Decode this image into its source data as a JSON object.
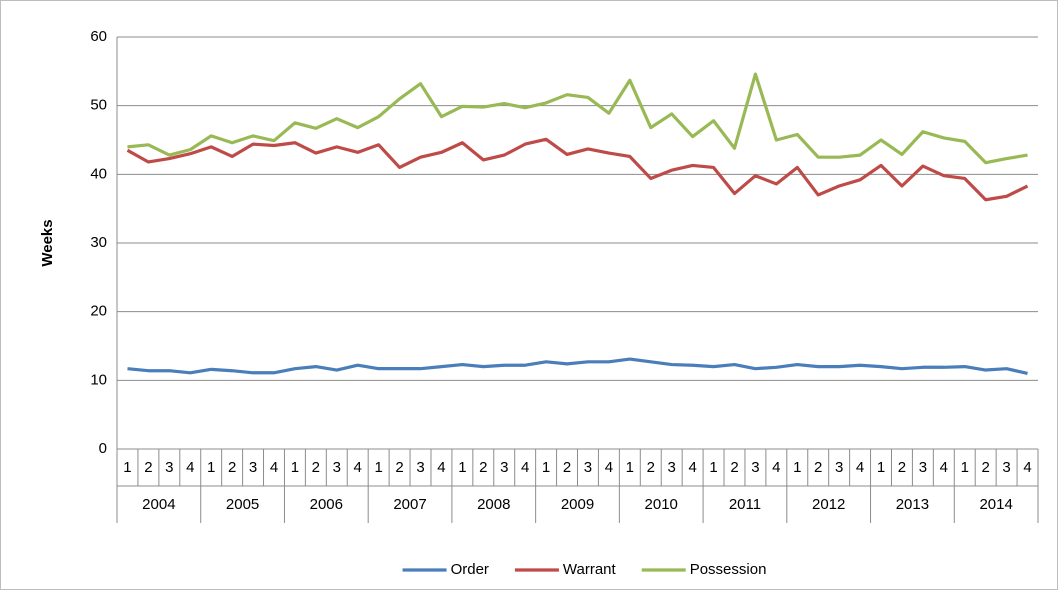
{
  "chart_data": {
    "type": "line",
    "y_label": "Weeks",
    "categories": [
      "1",
      "2",
      "3",
      "4",
      "1",
      "2",
      "3",
      "4",
      "1",
      "2",
      "3",
      "4",
      "1",
      "2",
      "3",
      "4",
      "1",
      "2",
      "3",
      "4",
      "1",
      "2",
      "3",
      "4",
      "1",
      "2",
      "3",
      "4",
      "1",
      "2",
      "3",
      "4",
      "1",
      "2",
      "3",
      "4",
      "1",
      "2",
      "3",
      "4",
      "1",
      "2",
      "3",
      "4"
    ],
    "category_groups": [
      "2004",
      "2005",
      "2006",
      "2007",
      "2008",
      "2009",
      "2010",
      "2011",
      "2012",
      "2013",
      "2014"
    ],
    "series": [
      {
        "name": "Order",
        "color": "#4a7ebb",
        "values": [
          11.7,
          11.4,
          11.4,
          11.1,
          11.6,
          11.4,
          11.1,
          11.1,
          11.7,
          12.0,
          11.5,
          12.2,
          11.7,
          11.7,
          11.7,
          12.0,
          12.3,
          12.0,
          12.2,
          12.2,
          12.7,
          12.4,
          12.7,
          12.7,
          13.1,
          12.7,
          12.3,
          12.2,
          12.0,
          12.3,
          11.7,
          11.9,
          12.3,
          12.0,
          12.0,
          12.2,
          12.0,
          11.7,
          11.9,
          11.9,
          12.0,
          11.5,
          11.7,
          11.0
        ]
      },
      {
        "name": "Warrant",
        "color": "#be4b48",
        "values": [
          43.5,
          41.8,
          42.3,
          43.0,
          44.0,
          42.6,
          44.4,
          44.2,
          44.6,
          43.1,
          44.0,
          43.2,
          44.3,
          41.0,
          42.5,
          43.2,
          44.6,
          42.1,
          42.8,
          44.4,
          45.1,
          42.9,
          43.7,
          43.1,
          42.6,
          39.4,
          40.6,
          41.3,
          41.0,
          37.2,
          39.8,
          38.6,
          41.0,
          37.0,
          38.3,
          39.2,
          41.3,
          38.3,
          41.2,
          39.8,
          39.4,
          36.3,
          36.8,
          38.3
        ]
      },
      {
        "name": "Possession",
        "color": "#98b954",
        "values": [
          44.0,
          44.3,
          42.8,
          43.6,
          45.6,
          44.6,
          45.6,
          44.9,
          47.5,
          46.7,
          48.1,
          46.8,
          48.4,
          51.0,
          53.2,
          48.4,
          49.9,
          49.8,
          50.3,
          49.7,
          50.4,
          51.6,
          51.2,
          48.9,
          53.7,
          46.8,
          48.8,
          45.5,
          47.8,
          43.8,
          54.6,
          45.0,
          45.8,
          42.5,
          42.5,
          42.8,
          45.0,
          42.9,
          46.2,
          45.3,
          44.8,
          41.7,
          42.3,
          42.8
        ]
      }
    ],
    "ylim": [
      0,
      60
    ],
    "yticks": [
      0,
      10,
      20,
      30,
      40,
      50,
      60
    ],
    "grid": true,
    "legend": "bottom"
  }
}
